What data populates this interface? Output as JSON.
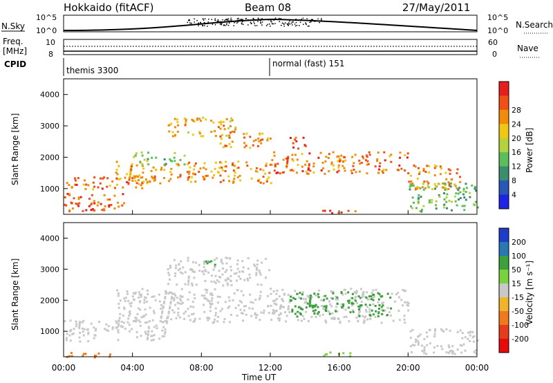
{
  "header": {
    "radar": "Hokkaido (fitACF)",
    "beam": "Beam 08",
    "date": "27/May/2011"
  },
  "top_panels": {
    "nsky_label": "N.Sky",
    "nsearch_label": "N.Search",
    "freq_label": "Freq.",
    "freq_unit": "[MHz]",
    "nave_label": "Nave",
    "cpid_label": "CPID",
    "n_tick_top_left": "10^5",
    "n_tick_bottom_left": "10^0",
    "n_tick_top_right": "10^5",
    "n_tick_bottom_right": "10^0",
    "freq_tick_top": "10",
    "freq_tick_bottom": "8",
    "nave_tick_top": "60",
    "nave_tick_bottom": "0",
    "cpid_1": "themis 3300",
    "cpid_2": "normal (fast) 151"
  },
  "power_panel": {
    "ylabel": "Slant Range [km]",
    "yticks": [
      "1000",
      "2000",
      "3000",
      "4000"
    ],
    "cbar_label": "Power [dB]",
    "cbar_ticks": [
      "4",
      "8",
      "12",
      "16",
      "20",
      "24",
      "28"
    ],
    "cbar_colors": [
      "#1e24e6",
      "#2858b4",
      "#3c8c6e",
      "#5abe5a",
      "#b4d23c",
      "#f0c814",
      "#f08c0a",
      "#f05014",
      "#e61e1e"
    ]
  },
  "velocity_panel": {
    "ylabel": "Slant Range [km]",
    "yticks": [
      "1000",
      "2000",
      "3000",
      "4000"
    ],
    "cbar_label": "Velocity [m s⁻¹]",
    "cbar_ticks": [
      "200",
      "100",
      "50",
      "15",
      "-15",
      "-50",
      "-100",
      "-200"
    ],
    "cbar_colors": [
      "#1e3cc8",
      "#2878b4",
      "#3ca03c",
      "#78d23c",
      "#c8c8c8",
      "#f0b428",
      "#f0781e",
      "#e63c1e",
      "#e60a0a"
    ]
  },
  "x_axis": {
    "ticks": [
      "00:00",
      "04:00",
      "08:00",
      "12:00",
      "16:00",
      "20:00",
      "00:00"
    ],
    "label": "Time UT"
  },
  "chart_data": {
    "type": "heatmap",
    "x_unit": "hours UT",
    "x_range": [
      0,
      24
    ],
    "y_range": [
      180,
      4500
    ],
    "power_blobs": [
      {
        "t": [
          0,
          3.5
        ],
        "r": [
          300,
          900
        ],
        "level": 28
      },
      {
        "t": [
          0,
          5
        ],
        "r": [
          1000,
          1400
        ],
        "level": 26
      },
      {
        "t": [
          3,
          12
        ],
        "r": [
          1200,
          1900
        ],
        "level": 24
      },
      {
        "t": [
          6,
          10
        ],
        "r": [
          2700,
          3300
        ],
        "level": 22
      },
      {
        "t": [
          9,
          12
        ],
        "r": [
          2300,
          2800
        ],
        "level": 24
      },
      {
        "t": [
          12,
          20
        ],
        "r": [
          1500,
          2200
        ],
        "level": 26
      },
      {
        "t": [
          13,
          14
        ],
        "r": [
          2300,
          2700
        ],
        "level": 28
      },
      {
        "t": [
          20,
          23
        ],
        "r": [
          1000,
          1800
        ],
        "level": 24
      },
      {
        "t": [
          15,
          17
        ],
        "r": [
          250,
          400
        ],
        "level": 28
      },
      {
        "t": [
          4,
          7
        ],
        "r": [
          1800,
          2200
        ],
        "level": 14
      },
      {
        "t": [
          20,
          24
        ],
        "r": [
          300,
          1200
        ],
        "level": 12
      }
    ],
    "velocity_blobs": [
      {
        "t": [
          0,
          6
        ],
        "r": [
          700,
          1400
        ],
        "v": 0
      },
      {
        "t": [
          3,
          20
        ],
        "r": [
          1300,
          2400
        ],
        "v": 0
      },
      {
        "t": [
          6,
          12
        ],
        "r": [
          2500,
          3400
        ],
        "v": 0
      },
      {
        "t": [
          13,
          19
        ],
        "r": [
          1500,
          2300
        ],
        "v": 60
      },
      {
        "t": [
          8,
          9
        ],
        "r": [
          3100,
          3300
        ],
        "v": 60
      },
      {
        "t": [
          0,
          3
        ],
        "r": [
          180,
          350
        ],
        "v": -60
      },
      {
        "t": [
          15,
          17
        ],
        "r": [
          200,
          350
        ],
        "v": 40
      },
      {
        "t": [
          20,
          24
        ],
        "r": [
          300,
          1100
        ],
        "v": 0
      }
    ]
  }
}
